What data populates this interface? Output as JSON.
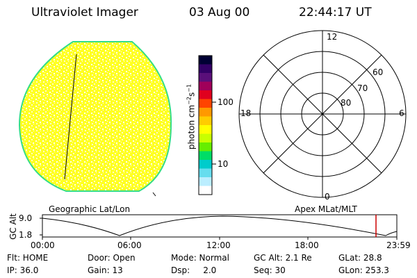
{
  "header": {
    "instrument": "Ultraviolet Imager",
    "date": "03 Aug 00",
    "time": "22:44:17 UT"
  },
  "colorbar": {
    "unit_label": "photon cm",
    "unit_exp1": "−2",
    "unit_mid": "s",
    "unit_exp2": "−1",
    "ticks": [
      "100",
      "10"
    ],
    "scale": "log",
    "colors": [
      "#000033",
      "#330066",
      "#5a0f7a",
      "#a0005a",
      "#e0001e",
      "#ff4400",
      "#ff9900",
      "#ffcc00",
      "#ffff00",
      "#c8ff00",
      "#66ee00",
      "#00dd66",
      "#00cccc",
      "#66ddee",
      "#bbeeff",
      "#ffffff"
    ]
  },
  "left_panel": {
    "label": "Geographic Lat/Lon",
    "disk_color": "#ffff00",
    "rim_color": "#33dd88"
  },
  "right_panel": {
    "label": "Apex MLat/MLT",
    "mlt_labels": {
      "top": "12",
      "right": "6",
      "bottom": "0",
      "left": "18"
    },
    "mlat_labels": [
      "60",
      "70",
      "80"
    ]
  },
  "altitude_plot": {
    "ylabel": "GC Alt",
    "y_ticks": [
      "9.0",
      "1.8"
    ],
    "x_ticks": [
      "00:00",
      "06:00",
      "12:00",
      "18:00",
      "23:59"
    ],
    "marker_color": "#cc0000"
  },
  "status": {
    "flt": "Flt: HOME",
    "door": "Door: Open",
    "mode": "Mode: Normal",
    "gc_alt": "GC Alt: 2.1 Re",
    "glat": "GLat:  28.8",
    "ip": "IP: 36.0",
    "gain": "Gain: 13",
    "dsp": "Dsp:     2.0",
    "seq": "Seq: 30",
    "glon": "GLon: 253.3"
  }
}
